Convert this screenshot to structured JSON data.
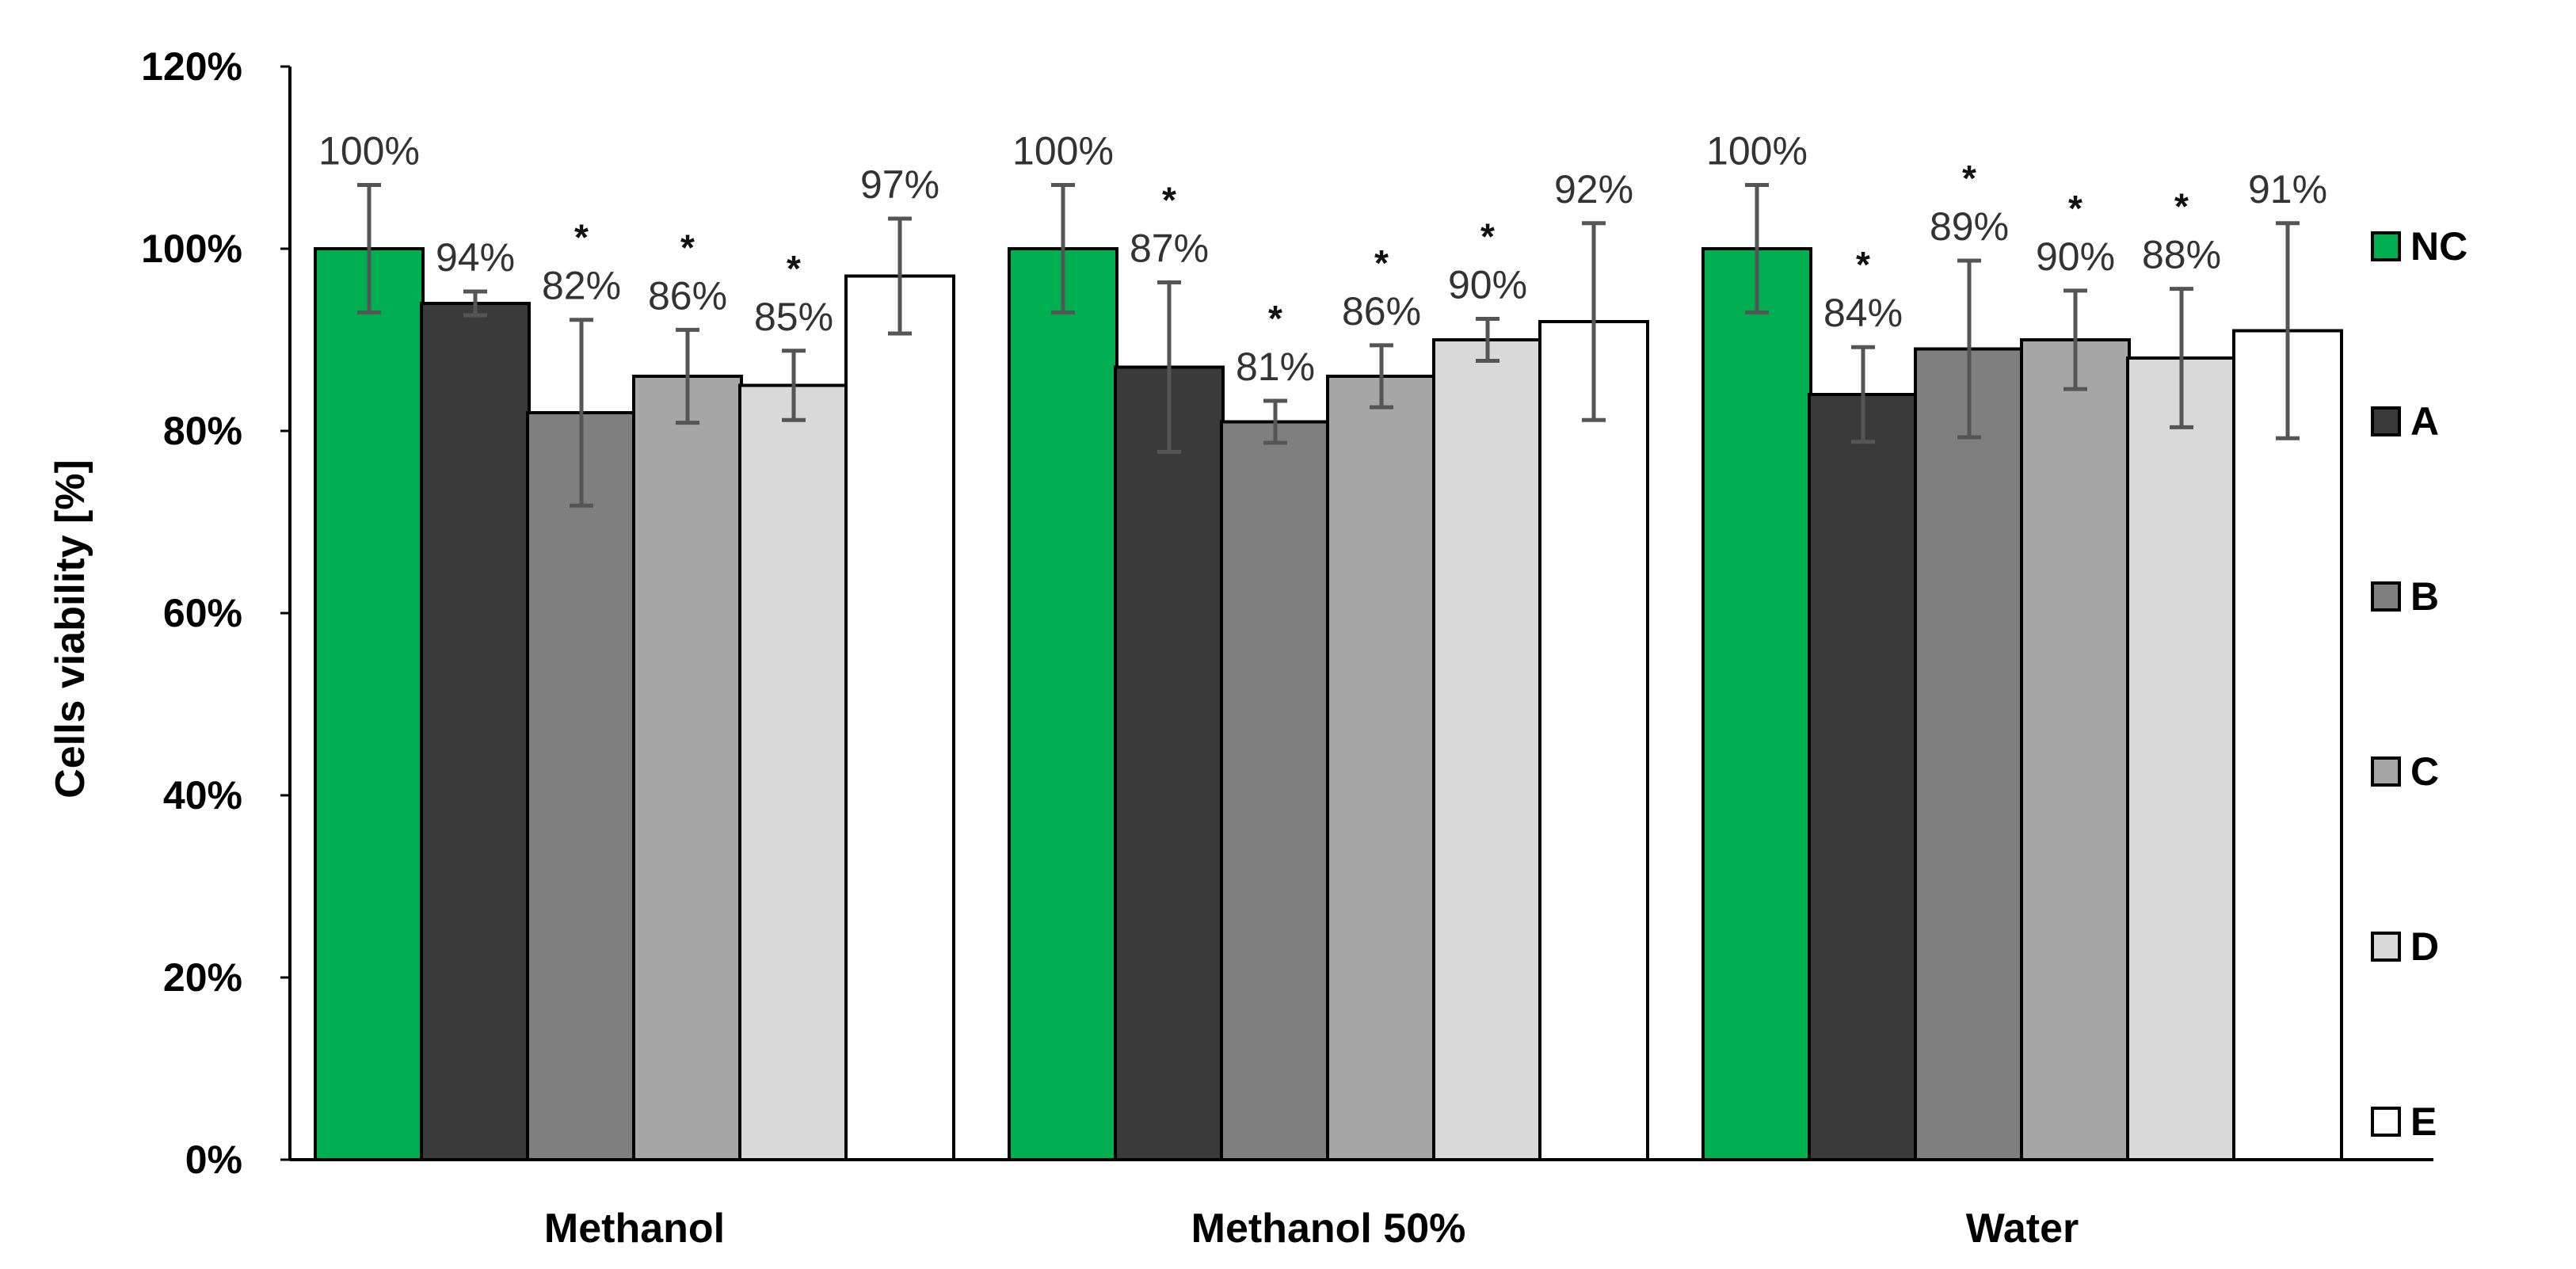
{
  "chart_data": {
    "type": "bar",
    "title": "",
    "xlabel": "",
    "ylabel": "Cells viability [%]",
    "ylim": [
      0,
      120
    ],
    "yticks": [
      "0%",
      "20%",
      "40%",
      "60%",
      "80%",
      "100%",
      "120%"
    ],
    "ytick_values": [
      0,
      20,
      40,
      60,
      80,
      100,
      120
    ],
    "categories": [
      "Methanol",
      "Methanol 50%",
      "Water"
    ],
    "legend_position": "right",
    "significance_marker": "*",
    "series": [
      {
        "name": "NC",
        "color": "#00b050",
        "values": [
          100,
          100,
          100
        ],
        "errors": [
          7,
          7,
          7
        ],
        "labels": [
          "100%",
          "100%",
          "100%"
        ],
        "significant": [
          false,
          false,
          false
        ]
      },
      {
        "name": "A",
        "color": "#3a3a3a",
        "values": [
          94,
          87,
          84
        ],
        "errors": [
          1.3,
          9.3,
          5.2
        ],
        "labels": [
          "94%",
          "87%",
          "84%"
        ],
        "significant": [
          false,
          true,
          true
        ]
      },
      {
        "name": "B",
        "color": "#7f7f7f",
        "values": [
          82,
          81,
          89
        ],
        "errors": [
          10.2,
          2.3,
          9.7
        ],
        "labels": [
          "82%",
          "81%",
          "89%"
        ],
        "significant": [
          true,
          true,
          true
        ]
      },
      {
        "name": "C",
        "color": "#a6a6a6",
        "values": [
          86,
          86,
          90
        ],
        "errors": [
          5.1,
          3.4,
          5.4
        ],
        "labels": [
          "86%",
          "86%",
          "90%"
        ],
        "significant": [
          true,
          true,
          true
        ]
      },
      {
        "name": "D",
        "color": "#d9d9d9",
        "values": [
          85,
          90,
          88
        ],
        "errors": [
          3.8,
          2.3,
          7.6
        ],
        "labels": [
          "85%",
          "90%",
          "88%"
        ],
        "significant": [
          true,
          true,
          true
        ]
      },
      {
        "name": "E",
        "color": "#ffffff",
        "values": [
          97,
          92,
          91
        ],
        "errors": [
          6.3,
          10.8,
          11.8
        ],
        "labels": [
          "97%",
          "92%",
          "91%"
        ],
        "significant": [
          false,
          false,
          false
        ]
      }
    ]
  }
}
